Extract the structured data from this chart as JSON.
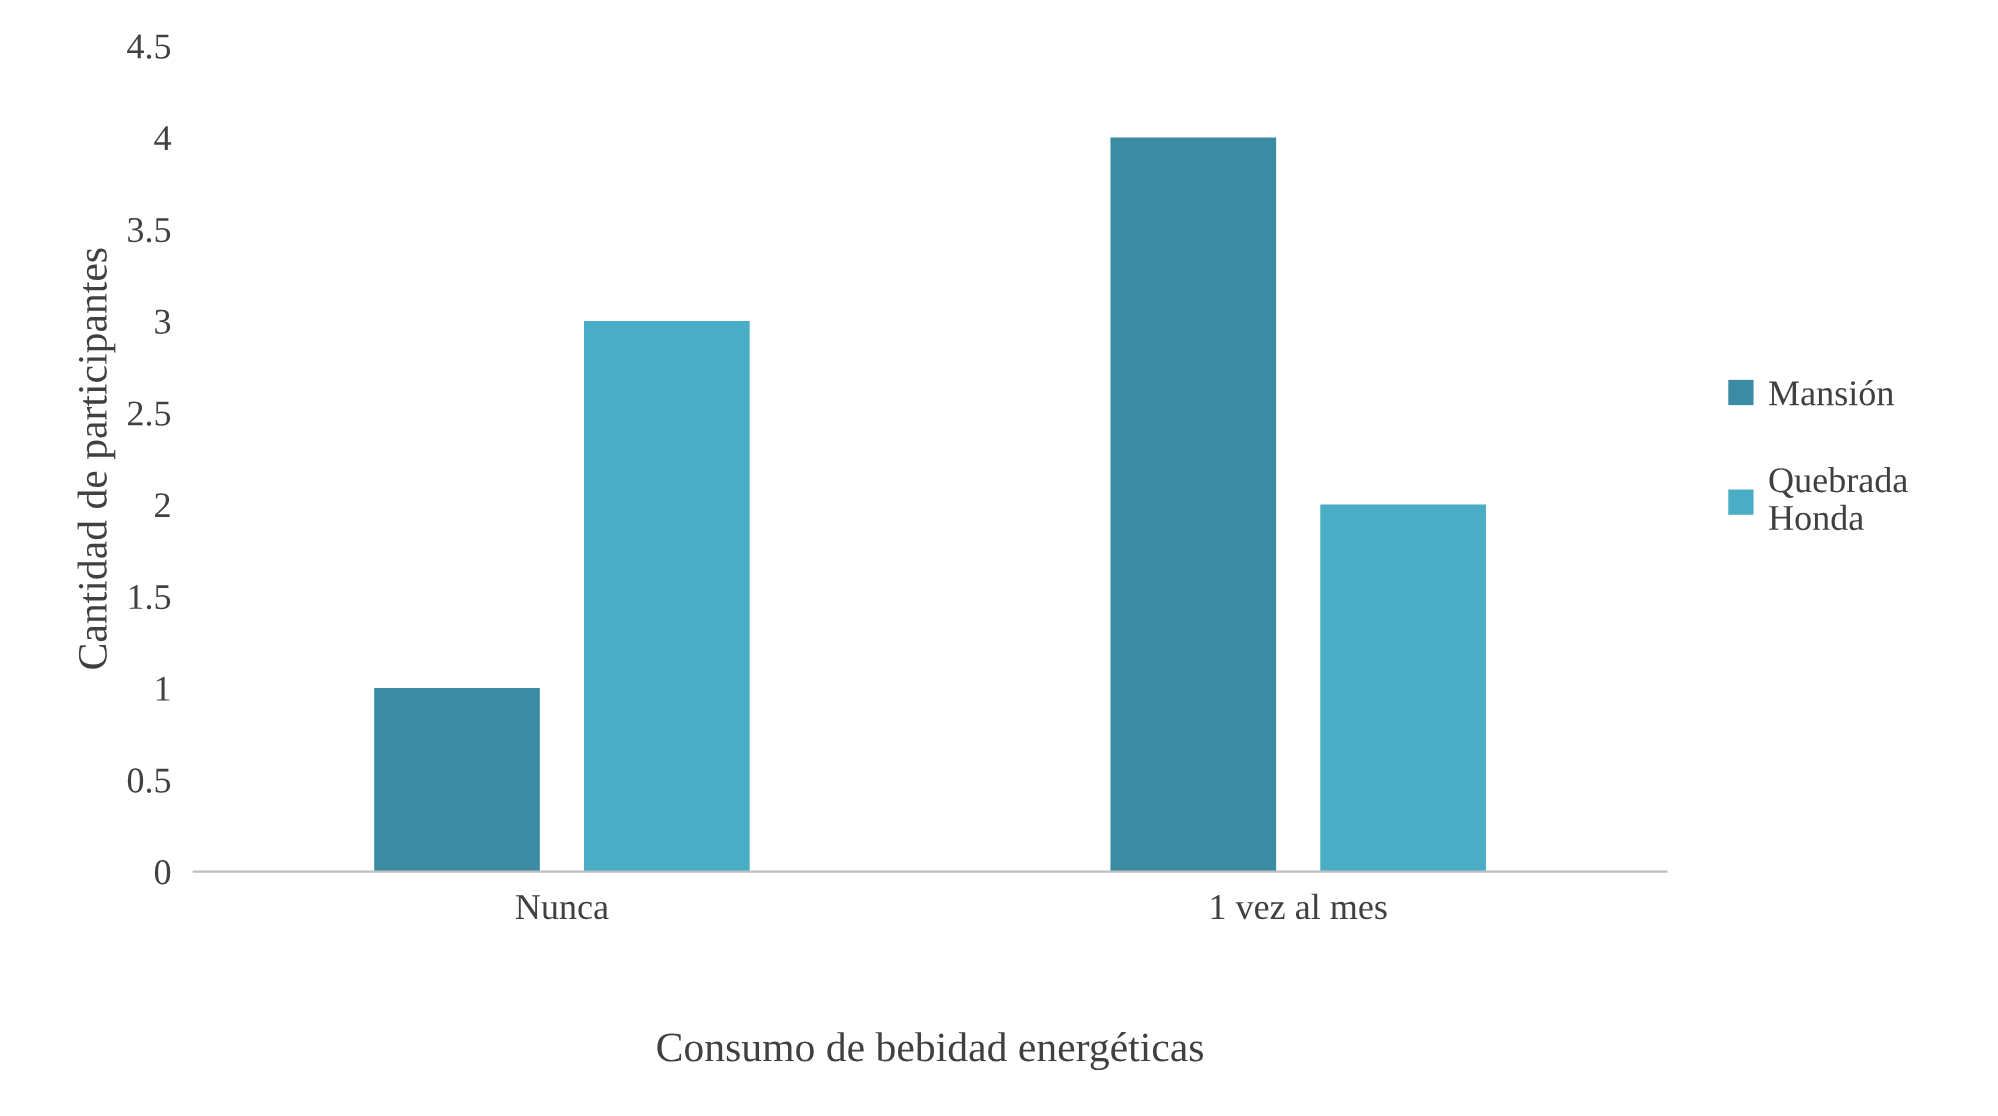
{
  "chart_data": {
    "type": "bar",
    "xlabel": "Consumo de bebidad energéticas",
    "ylabel": "Cantidad de participantes",
    "categories": [
      "Nunca",
      "1 vez al mes"
    ],
    "series": [
      {
        "name": "Mansión",
        "color": "#3b8ba3",
        "values": [
          1,
          4
        ]
      },
      {
        "name": "Quebrada Honda",
        "color": "#4aadc6",
        "values": [
          3,
          2
        ]
      }
    ],
    "ylim": [
      0,
      4.5
    ],
    "yticks": [
      0,
      0.5,
      1,
      1.5,
      2,
      2.5,
      3,
      3.5,
      4,
      4.5
    ],
    "grid": false,
    "legend": "right"
  }
}
